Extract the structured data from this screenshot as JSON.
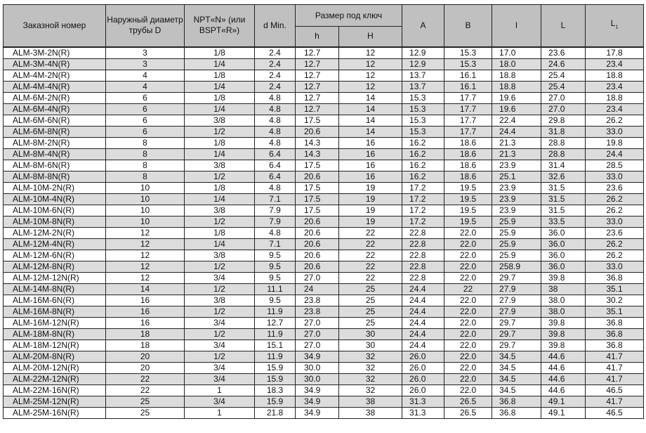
{
  "header": {
    "part": "Заказной номер",
    "outer_d": "Наружный диаметр трубы D",
    "thread": "NPT«N» (или BSPT«R»)",
    "d_min": "d Min.",
    "wrench": "Размер под ключ",
    "h": "h",
    "H": "H",
    "A": "A",
    "B": "B",
    "l": "l",
    "L": "L",
    "L1": "L",
    "L1_sub": "1"
  },
  "rows": [
    [
      "ALM-3M-2N(R)",
      "3",
      "1/8",
      "2.4",
      "12.7",
      "12",
      "12.9",
      "15.3",
      "17.0",
      "23.6",
      "17.8"
    ],
    [
      "ALM-3M-4N(R)",
      "3",
      "1/4",
      "2.4",
      "12.7",
      "12",
      "12.9",
      "15.3",
      "18.0",
      "24.6",
      "23.4"
    ],
    [
      "ALM-4M-2N(R)",
      "4",
      "1/8",
      "2.4",
      "12.7",
      "12",
      "13.7",
      "16.1",
      "18.8",
      "25.4",
      "18.8"
    ],
    [
      "ALM-4M-4N(R)",
      "4",
      "1/4",
      "2.4",
      "12.7",
      "12",
      "13.7",
      "16.1",
      "18.8",
      "25.4",
      "23.4"
    ],
    [
      "ALM-6M-2N(R)",
      "6",
      "1/8",
      "4.8",
      "12.7",
      "14",
      "15.3",
      "17.7",
      "19.6",
      "27.0",
      "18.8"
    ],
    [
      "ALM-6M-4N(R)",
      "6",
      "1/4",
      "4.8",
      "12.7",
      "14",
      "15.3",
      "17.7",
      "19.6",
      "27.0",
      "23.4"
    ],
    [
      "ALM-6M-6N(R)",
      "6",
      "3/8",
      "4.8",
      "17.5",
      "14",
      "15.3",
      "17.7",
      "22.4",
      "29.8",
      "26.2"
    ],
    [
      "ALM-6M-8N(R)",
      "6",
      "1/2",
      "4.8",
      "20.6",
      "14",
      "15.3",
      "17.7",
      "24.4",
      "31.8",
      "33.0"
    ],
    [
      "ALM-8M-2N(R)",
      "8",
      "1/8",
      "4.8",
      "14.3",
      "16",
      "16.2",
      "18.6",
      "21.3",
      "28.8",
      "19.8"
    ],
    [
      "ALM-8M-4N(R)",
      "8",
      "1/4",
      "6.4",
      "14.3",
      "16",
      "16.2",
      "18.6",
      "21.3",
      "28.8",
      "24.4"
    ],
    [
      "ALM-8M-6N(R)",
      "8",
      "3/8",
      "6.4",
      "17.5",
      "16",
      "16.2",
      "18.6",
      "23.9",
      "31.4",
      "28.5"
    ],
    [
      "ALM-8M-8N(R)",
      "8",
      "1/2",
      "6.4",
      "20.6",
      "16",
      "16.2",
      "18.6",
      "25.1",
      "32.6",
      "33.0"
    ],
    [
      "ALM-10M-2N(R)",
      "10",
      "1/8",
      "4.8",
      "17.5",
      "19",
      "17.2",
      "19.5",
      "23.9",
      "31.5",
      "23.6"
    ],
    [
      "ALM-10M-4N(R)",
      "10",
      "1/4",
      "7.1",
      "17.5",
      "19",
      "17.2",
      "19.5",
      "23.9",
      "31.5",
      "26.2"
    ],
    [
      "ALM-10M-6N(R)",
      "10",
      "3/8",
      "7.9",
      "17.5",
      "19",
      "17.2",
      "19.5",
      "23.9",
      "31.5",
      "26.2"
    ],
    [
      "ALM-10M-8N(R)",
      "10",
      "1/2",
      "7.9",
      "20.6",
      "19",
      "17.2",
      "19.5",
      "25.9",
      "33.5",
      "33.0"
    ],
    [
      "ALM-12M-2N(R)",
      "12",
      "1/8",
      "4.8",
      "20.6",
      "22",
      "22.8",
      "22.0",
      "25.9",
      "36.0",
      "23.6"
    ],
    [
      "ALM-12M-4N(R)",
      "12",
      "1/4",
      "7.1",
      "20.6",
      "22",
      "22.8",
      "22.0",
      "25.9",
      "36.0",
      "26.2"
    ],
    [
      "ALM-12M-6N(R)",
      "12",
      "3/8",
      "9.5",
      "20.6",
      "22",
      "22.8",
      "22.0",
      "25.9",
      "36.0",
      "26.2"
    ],
    [
      "ALM-12M-8N(R)",
      "12",
      "1/2",
      "9.5",
      "20.6",
      "22",
      "22.8",
      "22.0",
      "258.9",
      "36.0",
      "33.0"
    ],
    [
      "ALM-12M-12N(R)",
      "12",
      "3/4",
      "9.5",
      "27.0",
      "22",
      "22.8",
      "22.0",
      "29.7",
      "39.8",
      "36.8"
    ],
    [
      "ALM-14M-8N(R)",
      "14",
      "1/2",
      "11.1",
      "24",
      "25",
      "24.4",
      "22",
      "27.9",
      "38",
      "35.1"
    ],
    [
      "ALM-16M-6N(R)",
      "16",
      "3/8",
      "9.5",
      "23.8",
      "25",
      "24.4",
      "22.0",
      "27.9",
      "38.0",
      "30.2"
    ],
    [
      "ALM-16M-8N(R)",
      "16",
      "1/2",
      "11.9",
      "23.8",
      "25",
      "24.4",
      "22.0",
      "27.9",
      "38.0",
      "35.1"
    ],
    [
      "ALM-16M-12N(R)",
      "16",
      "3/4",
      "12.7",
      "27.0",
      "25",
      "24.4",
      "22.0",
      "29.7",
      "39.8",
      "36.8"
    ],
    [
      "ALM-18M-8N(R)",
      "18",
      "1/2",
      "11.9",
      "27.0",
      "30",
      "24.4",
      "22.0",
      "29.7",
      "39.8",
      "36.8"
    ],
    [
      "ALM-18M-12N(R)",
      "18",
      "3/4",
      "15.1",
      "27.0",
      "30",
      "24.4",
      "22.0",
      "29.7",
      "39.8",
      "36.8"
    ],
    [
      "ALM-20M-8N(R)",
      "20",
      "1/2",
      "11.9",
      "34.9",
      "32",
      "26.0",
      "22.0",
      "34.5",
      "44.6",
      "41.7"
    ],
    [
      "ALM-20M-12N(R)",
      "20",
      "3/4",
      "15.9",
      "30.0",
      "32",
      "26.0",
      "22.0",
      "34.5",
      "44.6",
      "41.7"
    ],
    [
      "ALM-22M-12N(R)",
      "22",
      "3/4",
      "15.9",
      "30.0",
      "32",
      "26.0",
      "22.0",
      "34.5",
      "44.6",
      "41.7"
    ],
    [
      "ALM-22M-16N(R)",
      "22",
      "1",
      "18.3",
      "34.9",
      "32",
      "26.0",
      "22.0",
      "34.5",
      "44.6",
      "46.5"
    ],
    [
      "ALM-25M-12N(R)",
      "25",
      "3/4",
      "15.9",
      "34.9",
      "38",
      "31.3",
      "26.5",
      "36.8",
      "49.1",
      "41.7"
    ],
    [
      "ALM-25M-16N(R)",
      "25",
      "1",
      "21.8",
      "34.9",
      "38",
      "31.3",
      "26.5",
      "36.8",
      "49.1",
      "46.5"
    ]
  ]
}
